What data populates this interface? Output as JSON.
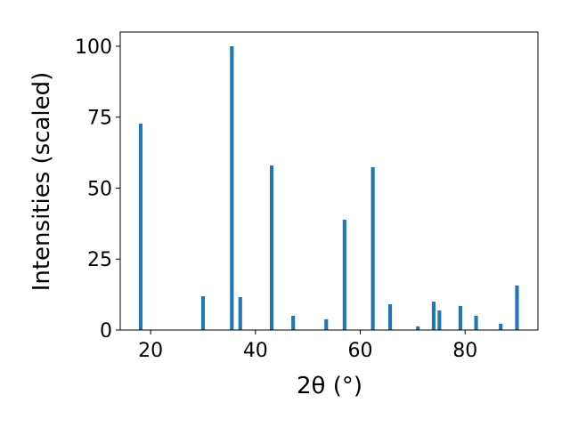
{
  "chart_data": {
    "type": "bar",
    "x_label": "2θ (°)",
    "y_label": "Intensities (scaled)",
    "x": [
      18.1,
      30.0,
      35.5,
      37.1,
      43.1,
      47.2,
      53.5,
      57.0,
      62.4,
      65.7,
      71.0,
      74.0,
      75.1,
      79.1,
      82.1,
      86.8,
      89.9
    ],
    "values": [
      72.7,
      11.9,
      100,
      11.6,
      58,
      5,
      3.8,
      38.9,
      57.4,
      9.1,
      1.3,
      10,
      6.9,
      8.5,
      5,
      2.2,
      15.7
    ],
    "color": "#1f77b4",
    "xlim": [
      14.2,
      93.9
    ],
    "ylim": [
      0,
      105
    ],
    "xticks": [
      20,
      40,
      60,
      80
    ],
    "yticks": [
      0,
      25,
      50,
      75,
      100
    ]
  }
}
